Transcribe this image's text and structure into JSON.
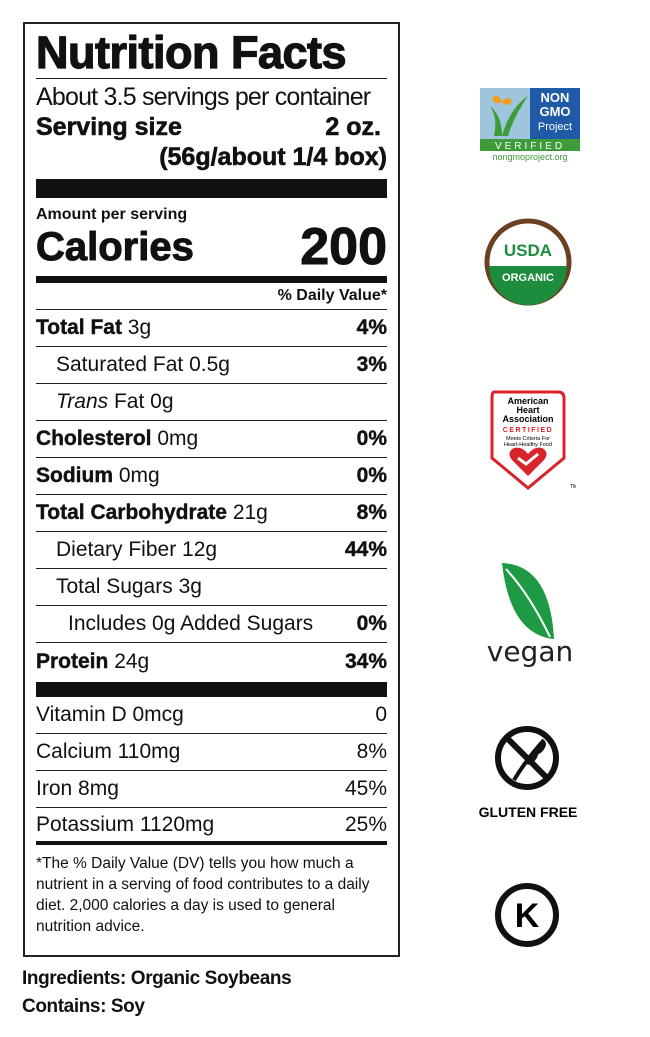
{
  "label": {
    "title": "Nutrition Facts",
    "servings_per_container": "About 3.5 servings per container",
    "serving_size_label": "Serving size",
    "serving_size_value": "2 oz.",
    "serving_size_detail": "(56g/about 1/4 box)",
    "amount_per_serving": "Amount per serving",
    "calories_label": "Calories",
    "calories_value": "200",
    "daily_value_header": "% Daily Value*",
    "nutrients": [
      {
        "name": "Total Fat",
        "amount": "3g",
        "dv": "4%"
      },
      {
        "name": "Saturated Fat",
        "amount": "0.5g",
        "dv": "3%"
      },
      {
        "name_italic": "Trans",
        "name": "Fat",
        "amount": "0g",
        "dv": ""
      },
      {
        "name": "Cholesterol",
        "amount": "0mg",
        "dv": "0%"
      },
      {
        "name": "Sodium",
        "amount": "0mg",
        "dv": "0%"
      },
      {
        "name": "Total Carbohydrate",
        "amount": "21g",
        "dv": "8%"
      },
      {
        "name": "Dietary Fiber",
        "amount": "12g",
        "dv": "44%"
      },
      {
        "name": "Total Sugars",
        "amount": "3g",
        "dv": ""
      },
      {
        "name": "Includes 0g Added Sugars",
        "amount": "",
        "dv": "0%"
      },
      {
        "name": "Protein",
        "amount": "24g",
        "dv": "34%"
      }
    ],
    "vitamins": [
      {
        "name": "Vitamin D 0mcg",
        "dv": "0"
      },
      {
        "name": "Calcium 110mg",
        "dv": "8%"
      },
      {
        "name": "Iron 8mg",
        "dv": "45%"
      },
      {
        "name": "Potassium 1120mg",
        "dv": "25%"
      }
    ],
    "footnote": "*The % Daily Value (DV) tells you how much a nutrient in a serving of food contributes to a daily diet. 2,000 calories a day is used to general nutrition advice."
  },
  "ingredients": "Ingredients: Organic Soybeans",
  "contains": "Contains: Soy",
  "badges": {
    "non_gmo": {
      "line1": "NON",
      "line2": "GMO",
      "line3": "Project",
      "verified": "VERIFIED",
      "url": "nongmoproject.org",
      "color_blue": "#1f5aa6",
      "color_green": "#3d9b3a"
    },
    "usda": {
      "top": "USDA",
      "bottom": "ORGANIC",
      "color_brown": "#6b3f1f",
      "color_green": "#1e8c3f"
    },
    "aha": {
      "line1": "American",
      "line2": "Heart",
      "line3": "Association",
      "certified": "CERTIFIED",
      "sub1": "Meets Criteria For",
      "sub2": "Heart-Healthy Food",
      "tm": "TM",
      "color": "#d8232a"
    },
    "vegan": {
      "text": "vegan",
      "color": "#1e9a44"
    },
    "gluten_free": {
      "text": "GLUTEN FREE"
    },
    "kosher": {
      "letter": "K"
    }
  }
}
